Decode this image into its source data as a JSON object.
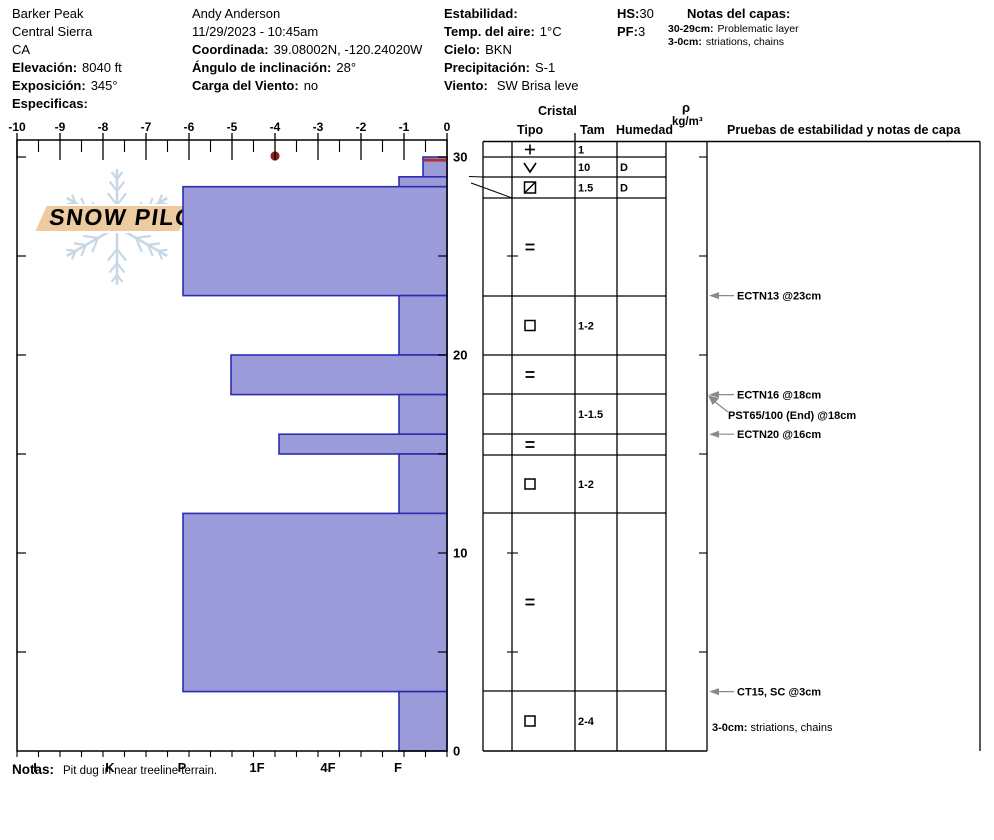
{
  "site": {
    "name": "Barker Peak",
    "range": "Central Sierra",
    "state": "CA",
    "elevation_label": "Elevación:",
    "elevation_value": "8040 ft",
    "aspect_label": "Exposición:",
    "aspect_value": "345°",
    "specifics_label": "Especificas:"
  },
  "observer": {
    "name": "Andy Anderson",
    "datetime": "11/29/2023 - 10:45am",
    "coordinates_label": "Coordinada:",
    "coordinates_value": "39.08002N, -120.24020W",
    "slope_angle_label": "Ángulo de inclinación:",
    "slope_angle_value": "28°",
    "wind_loading_label": "Carga del Viento:",
    "wind_loading_value": "no"
  },
  "conditions": {
    "stability_label": "Estabilidad:",
    "stability_value": "",
    "air_temp_label": "Temp. del aire:",
    "air_temp_value": "1°C",
    "sky_label": "Cielo:",
    "sky_value": "BKN",
    "precip_label": "Precipitación:",
    "precip_value": "S-1",
    "wind_label": "Viento:",
    "wind_value": "SW Brisa leve"
  },
  "totals": {
    "hs_label": "HS:",
    "hs_value": "30",
    "pf_label": "PF:",
    "pf_value": "3"
  },
  "layer_notes": {
    "title": "Notas del capas:",
    "items": [
      {
        "range": "30-29cm:",
        "text": "Problematic layer"
      },
      {
        "range": "3-0cm:",
        "text": "striations, chains"
      }
    ]
  },
  "logo": {
    "text": "SNOW PILOT"
  },
  "chart_data": {
    "type": "bar",
    "subtype": "snow-profile",
    "temp_axis": {
      "min": -10,
      "max": 0,
      "unit": "°C",
      "labels": [
        "-10",
        "-9",
        "-8",
        "-7",
        "-6",
        "-5",
        "-4",
        "-3",
        "-2",
        "-1",
        "0"
      ]
    },
    "depth_axis": {
      "min": 0,
      "max": 30,
      "unit": "cm",
      "labels": [
        "30",
        "20",
        "10",
        "0"
      ],
      "label_values": [
        30,
        20,
        10,
        0
      ],
      "side_tick_step_cm": 5
    },
    "hardness_axis": {
      "labels": [
        "I",
        "K",
        "P",
        "1F",
        "4F",
        "F"
      ]
    },
    "temperature_points": [
      {
        "temp_c": -4,
        "depth_cm": 30
      }
    ],
    "layers": [
      {
        "top_cm": 30,
        "bottom_cm": 29,
        "hardness": "F-",
        "grain_symbol": "plus",
        "grain_size_mm": "1",
        "moisture": "",
        "problematic": true
      },
      {
        "top_cm": 29,
        "bottom_cm": 28.5,
        "hardness": "F",
        "grain_symbol": "vee",
        "grain_size_mm": "10",
        "moisture": "D",
        "problematic": false
      },
      {
        "top_cm": 28.5,
        "bottom_cm": 28,
        "hardness": "P",
        "grain_symbol": "box-slash",
        "grain_size_mm": "1.5",
        "moisture": "D",
        "problematic": false
      },
      {
        "top_cm": 28,
        "bottom_cm": 23,
        "hardness": "P",
        "grain_symbol": "equals",
        "grain_size_mm": "",
        "moisture": "",
        "problematic": false
      },
      {
        "top_cm": 23,
        "bottom_cm": 20,
        "hardness": "F",
        "grain_symbol": "box",
        "grain_size_mm": "1-2",
        "moisture": "",
        "problematic": false
      },
      {
        "top_cm": 20,
        "bottom_cm": 18,
        "hardness": "1F+",
        "grain_symbol": "equals",
        "grain_size_mm": "",
        "moisture": "",
        "problematic": false
      },
      {
        "top_cm": 18,
        "bottom_cm": 16,
        "hardness": "F",
        "grain_symbol": "none",
        "grain_size_mm": "1-1.5",
        "moisture": "",
        "problematic": false
      },
      {
        "top_cm": 16,
        "bottom_cm": 15,
        "hardness": "1F-",
        "grain_symbol": "equals",
        "grain_size_mm": "",
        "moisture": "",
        "problematic": false
      },
      {
        "top_cm": 15,
        "bottom_cm": 12,
        "hardness": "F",
        "grain_symbol": "box",
        "grain_size_mm": "1-2",
        "moisture": "",
        "problematic": false
      },
      {
        "top_cm": 12,
        "bottom_cm": 3,
        "hardness": "P",
        "grain_symbol": "equals",
        "grain_size_mm": "",
        "moisture": "",
        "problematic": false
      },
      {
        "top_cm": 3,
        "bottom_cm": 0,
        "hardness": "F",
        "grain_symbol": "box",
        "grain_size_mm": "2-4",
        "moisture": "",
        "problematic": false
      }
    ],
    "colors": {
      "bar_fill": "#9b9bd9",
      "bar_stroke": "#2c2cb0",
      "flag_red": "#b23325",
      "temp_dot": "#8b2420",
      "arrow_gray": "#8a8a8a",
      "logo_flake": "#c8d7e4",
      "logo_banner": "#edcba1",
      "logo_text": "#f8efdf"
    }
  },
  "table": {
    "crystal_header": "Cristal",
    "col_tipo": "Tipo",
    "col_tam": "Tam",
    "col_humedad": "Humedad",
    "rho": "ρ",
    "rho_units": "kg/m³",
    "tests_header": "Pruebas de estabilidad y notas de capa"
  },
  "tests": [
    {
      "label": "ECTN13 @23cm",
      "depth_cm": 23,
      "diagonal": false
    },
    {
      "label": "ECTN16 @18cm",
      "depth_cm": 18,
      "diagonal": false
    },
    {
      "label": "PST65/100 (End) @18cm",
      "depth_cm": 18,
      "diagonal": true
    },
    {
      "label": "ECTN20 @16cm",
      "depth_cm": 16,
      "diagonal": false
    },
    {
      "label": "CT15, SC @3cm",
      "depth_cm": 3,
      "diagonal": false
    }
  ],
  "tests_note": {
    "range": "3-0cm:",
    "text": " striations, chains"
  },
  "footer": {
    "label": "Notas:",
    "text": "Pit dug in near treeline terrain."
  }
}
